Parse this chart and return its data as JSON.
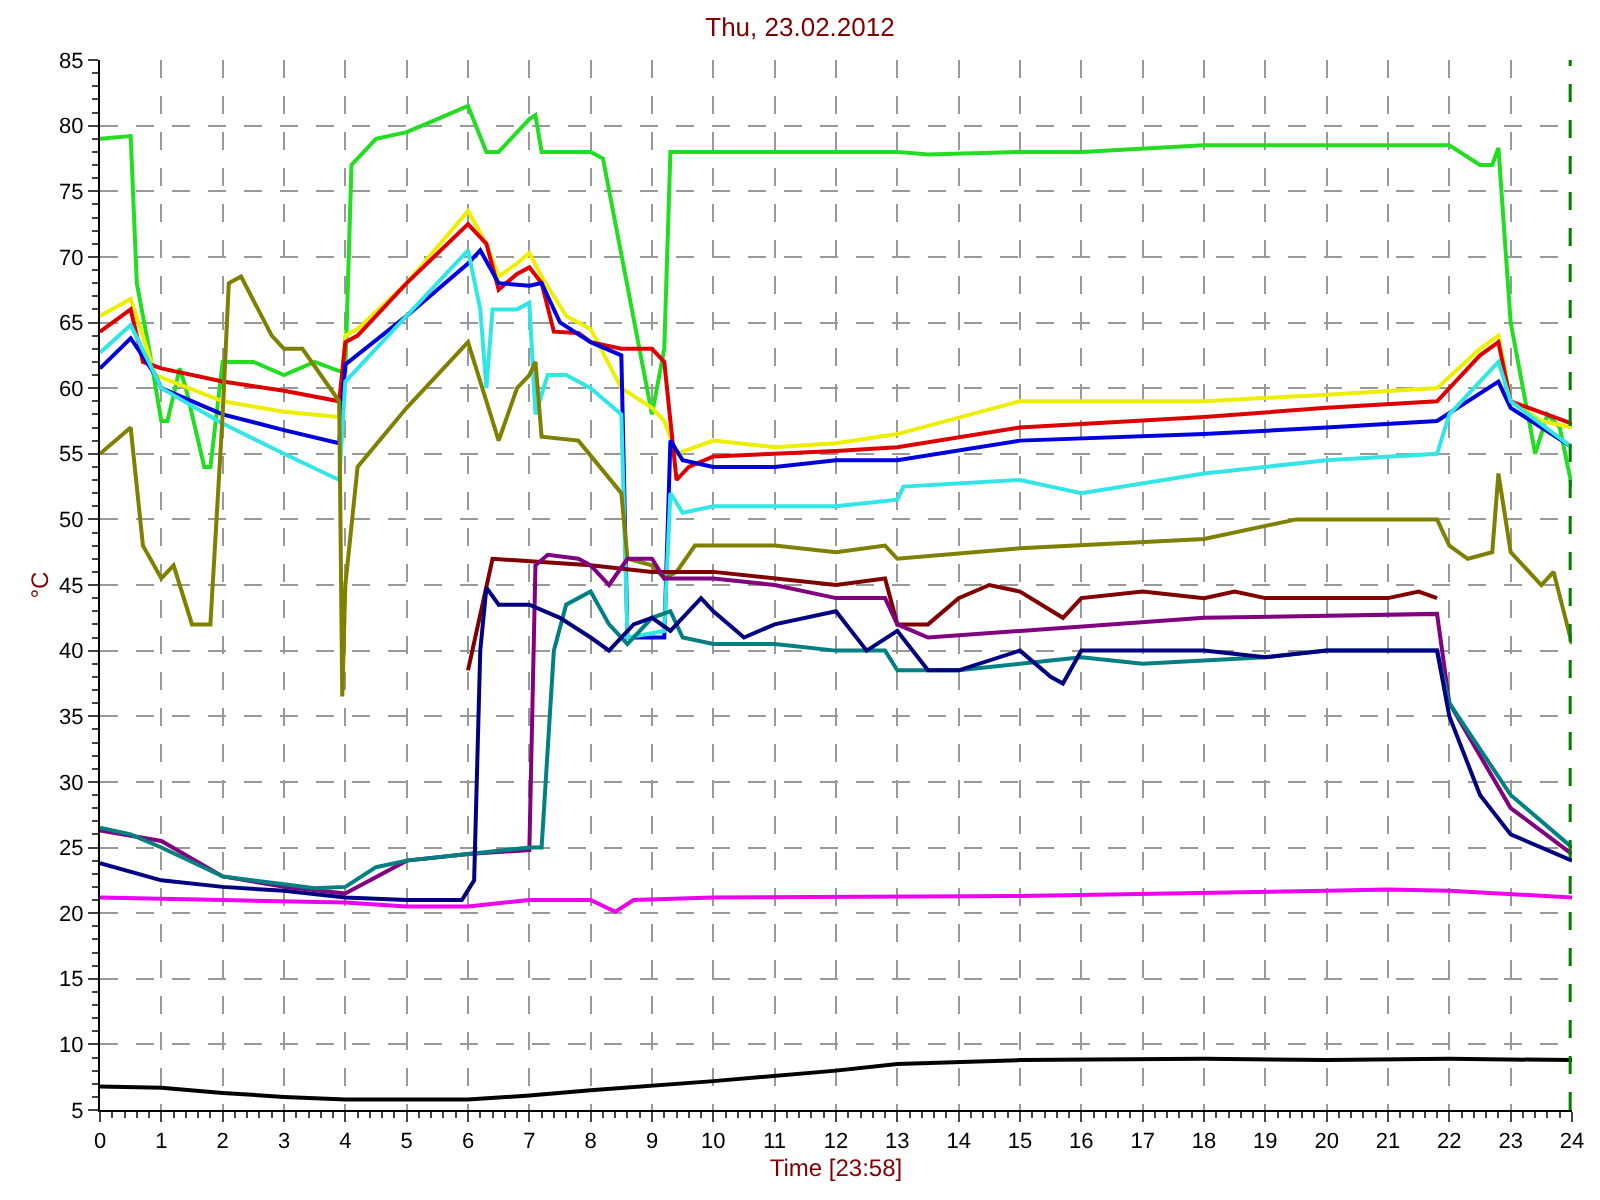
{
  "chart_data": {
    "type": "line",
    "title": "Thu, 23.02.2012",
    "xlabel": "Time [23:58]",
    "ylabel": "°C",
    "xlim": [
      0,
      24
    ],
    "xticks": [
      0,
      1,
      2,
      3,
      4,
      5,
      6,
      7,
      8,
      9,
      10,
      11,
      12,
      13,
      14,
      15,
      16,
      17,
      18,
      19,
      20,
      21,
      22,
      23,
      24
    ],
    "ylim": [
      5,
      85
    ],
    "yticks": [
      5,
      10,
      15,
      20,
      25,
      30,
      35,
      40,
      45,
      50,
      55,
      60,
      65,
      70,
      75,
      80,
      85
    ],
    "grid": true,
    "marker": "none",
    "line_style": "solid",
    "ref_lines": [
      {
        "axis": "x",
        "value": 23.97,
        "color": "#008000",
        "line_style": "dashed"
      }
    ],
    "series": [
      {
        "color": "#22dd22",
        "x": [
          0,
          0.5,
          0.6,
          0.8,
          1.0,
          1.1,
          1.3,
          1.4,
          1.7,
          1.8,
          2.0,
          2.5,
          3.0,
          3.5,
          3.9,
          4.0,
          4.1,
          4.5,
          5,
          5.5,
          6.0,
          6.3,
          6.5,
          7.0,
          7.1,
          7.2,
          8.0,
          8.2,
          9.0,
          9.2,
          9.3,
          10,
          11,
          12,
          13,
          13.5,
          15,
          16,
          18,
          20,
          21.5,
          22,
          22.5,
          22.7,
          22.8,
          23,
          23.4,
          23.6,
          23.8,
          24
        ],
        "values": [
          79,
          79.2,
          68,
          63,
          57.5,
          57.5,
          61.5,
          60,
          54,
          54,
          62,
          62,
          61,
          62,
          61.3,
          61.3,
          77,
          79,
          79.5,
          80.5,
          81.5,
          78,
          78,
          80.5,
          80.8,
          78,
          78,
          77.5,
          58,
          63,
          78,
          78,
          78,
          78,
          78,
          77.8,
          78,
          78,
          78.5,
          78.5,
          78.5,
          78.5,
          77,
          77,
          78.3,
          65,
          55,
          58,
          57,
          52.5
        ]
      },
      {
        "color": "#eeee00",
        "x": [
          0,
          0.5,
          0.7,
          0.9,
          2,
          3,
          3.9,
          4.0,
          4.2,
          5,
          6,
          6.3,
          6.5,
          6.8,
          7.0,
          7.2,
          7.6,
          8.0,
          8.5,
          9.0,
          9.2,
          9.4,
          10,
          11,
          12,
          13,
          15,
          18,
          20,
          21.8,
          22.5,
          22.8,
          23.0,
          23.5,
          24
        ],
        "values": [
          65.5,
          66.8,
          64,
          61,
          59,
          58.2,
          57.8,
          64,
          64.5,
          68,
          73.5,
          71,
          68.5,
          69.5,
          70.3,
          68.5,
          65.5,
          64.5,
          60,
          58.5,
          57.5,
          55,
          56,
          55.5,
          55.8,
          56.5,
          59,
          59,
          59.5,
          60,
          63,
          64,
          59,
          57.5,
          57
        ]
      },
      {
        "color": "#dd0000",
        "x": [
          0,
          0.5,
          0.7,
          1,
          2,
          3,
          3.9,
          4.0,
          4.2,
          5,
          6,
          6.3,
          6.5,
          6.8,
          7.0,
          7.2,
          7.4,
          7.8,
          8.0,
          8.5,
          9.0,
          9.2,
          9.4,
          9.6,
          10,
          11,
          12,
          13,
          15,
          18,
          20,
          21.8,
          22.5,
          22.8,
          23.0,
          24
        ],
        "values": [
          64.3,
          66,
          62,
          61.5,
          60.5,
          59.8,
          59,
          63.5,
          64,
          68,
          72.5,
          71,
          67.5,
          68.7,
          69.2,
          68,
          64.3,
          64.2,
          63.5,
          63,
          63,
          62,
          53,
          54,
          54.8,
          55,
          55.2,
          55.5,
          57,
          57.8,
          58.5,
          59,
          62.5,
          63.5,
          59,
          57.3
        ]
      },
      {
        "color": "#0000dd",
        "x": [
          0,
          0.5,
          0.9,
          1,
          2,
          3,
          3.9,
          4.0,
          5,
          6,
          6.2,
          6.5,
          7.0,
          7.2,
          7.5,
          8.0,
          8.5,
          8.6,
          9.2,
          9.3,
          9.5,
          10,
          11,
          12,
          13,
          15,
          18,
          20,
          21.8,
          22.8,
          23.0,
          24
        ],
        "values": [
          61.5,
          63.8,
          61,
          60,
          58,
          56.8,
          55.8,
          61.8,
          65.5,
          69.5,
          70.5,
          68,
          67.8,
          68,
          65,
          63.5,
          62.5,
          41,
          41,
          56,
          54.5,
          54,
          54,
          54.5,
          54.5,
          56,
          56.5,
          57,
          57.5,
          60.5,
          58.5,
          55.5
        ]
      },
      {
        "color": "#33e6e6",
        "x": [
          0,
          0.5,
          0.9,
          1,
          2,
          3,
          3.9,
          4.0,
          5,
          6,
          6.2,
          6.3,
          6.4,
          6.8,
          7.0,
          7.1,
          7.3,
          7.6,
          8.0,
          8.5,
          8.6,
          9.2,
          9.3,
          9.5,
          10,
          11,
          12,
          13,
          13.1,
          15,
          16,
          18,
          20,
          21.8,
          22,
          22.8,
          23.0,
          24
        ],
        "values": [
          62.7,
          64.8,
          61,
          60,
          57.3,
          55,
          53,
          60.5,
          65.5,
          70.5,
          66,
          60,
          66,
          66,
          66.5,
          58,
          61,
          61,
          60,
          58,
          41,
          41.5,
          52,
          50.5,
          51,
          51,
          51,
          51.5,
          52.5,
          53,
          52,
          53.5,
          54.5,
          55,
          58,
          62,
          59,
          55.5
        ]
      },
      {
        "color": "#808000",
        "x": [
          0,
          0.5,
          0.7,
          1,
          1.2,
          1.5,
          1.8,
          2,
          2.1,
          2.3,
          2.8,
          3,
          3.3,
          3.9,
          3.95,
          4.0,
          4.2,
          5,
          6,
          6.3,
          6.5,
          6.8,
          7.0,
          7.1,
          7.2,
          7.8,
          8.5,
          8.6,
          9.0,
          9.2,
          9.4,
          9.7,
          11,
          12,
          12.8,
          13,
          15,
          18,
          19.5,
          21.8,
          22,
          22.3,
          22.7,
          22.8,
          23.0,
          23.5,
          23.7,
          24
        ],
        "values": [
          55,
          57,
          48,
          45.5,
          46.5,
          42,
          42,
          58,
          68,
          68.5,
          64,
          63,
          63,
          59,
          36.5,
          45,
          54,
          58.5,
          63.5,
          59,
          56,
          60,
          61,
          62,
          56.3,
          56,
          52,
          47,
          46.5,
          45.5,
          46,
          48,
          48,
          47.5,
          48,
          47,
          47.8,
          48.5,
          50,
          50,
          48,
          47,
          47.5,
          53.5,
          47.5,
          45,
          46,
          40.5
        ]
      },
      {
        "color": "#800000",
        "x": [
          6.0,
          6.4,
          8,
          9,
          10,
          12,
          12.8,
          13,
          13.5,
          14,
          14.5,
          15,
          15.7,
          16,
          17,
          18,
          18.5,
          19,
          21,
          21.5,
          21.8
        ],
        "values": [
          38.5,
          47,
          46.5,
          46,
          46,
          45,
          45.5,
          42,
          42,
          44,
          45,
          44.5,
          42.5,
          44,
          44.5,
          44,
          44.5,
          44,
          44,
          44.5,
          44
        ]
      },
      {
        "color": "#800080",
        "x": [
          0,
          1,
          2,
          3,
          4,
          5,
          6,
          7,
          7.1,
          7.3,
          7.8,
          8.0,
          8.3,
          8.6,
          9.0,
          9.2,
          9.5,
          10,
          11,
          12,
          12.8,
          13,
          13.5,
          15,
          18,
          21.8,
          22,
          23,
          24
        ],
        "values": [
          26.3,
          25.5,
          22.8,
          22,
          21.5,
          24,
          24.5,
          24.8,
          46.5,
          47.3,
          47,
          46.5,
          45,
          47,
          47,
          45.5,
          45.5,
          45.5,
          45,
          44,
          44,
          42,
          41,
          41.5,
          42.5,
          42.8,
          36,
          28,
          24.5
        ]
      },
      {
        "color": "#008080",
        "x": [
          0,
          0.5,
          1,
          2,
          3,
          3.5,
          4,
          4.5,
          5,
          6,
          7,
          7.2,
          7.4,
          7.6,
          8,
          8.3,
          8.6,
          9,
          9.3,
          9.5,
          10,
          11,
          12,
          12.8,
          13,
          14,
          15,
          16,
          17,
          19,
          20,
          21.8,
          22,
          23,
          24
        ],
        "values": [
          26.5,
          26,
          25,
          22.8,
          22.2,
          21.9,
          22,
          23.5,
          24,
          24.5,
          25,
          25,
          40,
          43.5,
          44.5,
          42,
          40.5,
          42.5,
          43,
          41,
          40.5,
          40.5,
          40,
          40,
          38.5,
          38.5,
          39,
          39.5,
          39,
          39.5,
          40,
          40,
          36,
          29,
          25
        ]
      },
      {
        "color": "#000080",
        "x": [
          0,
          1,
          2,
          3,
          4,
          5,
          5.9,
          6.1,
          6.2,
          6.3,
          6.5,
          7,
          7.5,
          8,
          8.3,
          8.7,
          9,
          9.3,
          9.8,
          10,
          10.5,
          11,
          12,
          12.5,
          13,
          13.5,
          14,
          15,
          15.5,
          15.7,
          16,
          17,
          18,
          19,
          20,
          21.8,
          22,
          22.5,
          23,
          24
        ],
        "values": [
          23.8,
          22.5,
          22,
          21.7,
          21.2,
          21,
          21,
          22.5,
          40,
          44.8,
          43.5,
          43.5,
          42.5,
          41,
          40,
          42,
          42.5,
          41.5,
          44,
          43,
          41,
          42,
          43,
          40,
          41.5,
          38.5,
          38.5,
          40,
          38,
          37.5,
          40,
          40,
          40,
          39.5,
          40,
          40,
          35,
          29,
          26,
          24
        ]
      },
      {
        "color": "#ee00ee",
        "x": [
          0,
          2,
          4,
          5,
          6,
          7,
          8,
          8.4,
          8.7,
          10,
          15,
          20,
          21,
          22,
          24
        ],
        "values": [
          21.2,
          21,
          20.8,
          20.5,
          20.5,
          21,
          21,
          20.1,
          21,
          21.2,
          21.3,
          21.7,
          21.8,
          21.7,
          21.2
        ]
      },
      {
        "color": "#000000",
        "x": [
          0,
          1,
          2,
          3,
          4,
          5,
          6,
          7,
          8,
          10,
          12,
          13,
          15,
          18,
          20,
          22,
          24
        ],
        "values": [
          6.8,
          6.7,
          6.3,
          6,
          5.8,
          5.8,
          5.8,
          6.1,
          6.5,
          7.2,
          8,
          8.5,
          8.8,
          8.9,
          8.8,
          8.9,
          8.8
        ]
      }
    ]
  }
}
